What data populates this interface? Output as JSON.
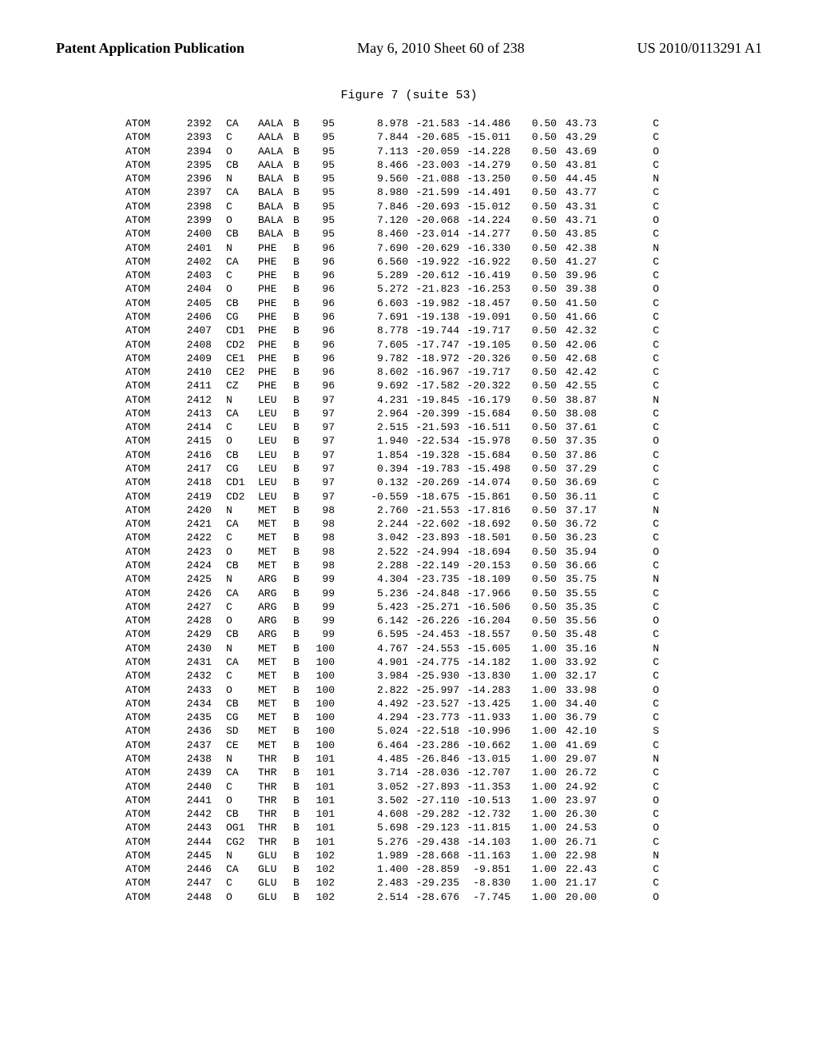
{
  "header": {
    "left": "Patent Application Publication",
    "middle": "May 6, 2010  Sheet 60 of 238",
    "right": "US 2010/0113291 A1"
  },
  "figure_caption": "Figure 7 (suite 53)",
  "atoms": [
    {
      "rec": "ATOM",
      "ser": 2392,
      "atm": "CA",
      "res": "AALA",
      "ch": "B",
      "seq": 95,
      "x": "8.978",
      "y": "-21.583",
      "z": "-14.486",
      "oc": "0.50",
      "bf": "43.73",
      "el": "C"
    },
    {
      "rec": "ATOM",
      "ser": 2393,
      "atm": "C",
      "res": "AALA",
      "ch": "B",
      "seq": 95,
      "x": "7.844",
      "y": "-20.685",
      "z": "-15.011",
      "oc": "0.50",
      "bf": "43.29",
      "el": "C"
    },
    {
      "rec": "ATOM",
      "ser": 2394,
      "atm": "O",
      "res": "AALA",
      "ch": "B",
      "seq": 95,
      "x": "7.113",
      "y": "-20.059",
      "z": "-14.228",
      "oc": "0.50",
      "bf": "43.69",
      "el": "O"
    },
    {
      "rec": "ATOM",
      "ser": 2395,
      "atm": "CB",
      "res": "AALA",
      "ch": "B",
      "seq": 95,
      "x": "8.466",
      "y": "-23.003",
      "z": "-14.279",
      "oc": "0.50",
      "bf": "43.81",
      "el": "C"
    },
    {
      "rec": "ATOM",
      "ser": 2396,
      "atm": "N",
      "res": "BALA",
      "ch": "B",
      "seq": 95,
      "x": "9.560",
      "y": "-21.088",
      "z": "-13.250",
      "oc": "0.50",
      "bf": "44.45",
      "el": "N"
    },
    {
      "rec": "ATOM",
      "ser": 2397,
      "atm": "CA",
      "res": "BALA",
      "ch": "B",
      "seq": 95,
      "x": "8.980",
      "y": "-21.599",
      "z": "-14.491",
      "oc": "0.50",
      "bf": "43.77",
      "el": "C"
    },
    {
      "rec": "ATOM",
      "ser": 2398,
      "atm": "C",
      "res": "BALA",
      "ch": "B",
      "seq": 95,
      "x": "7.846",
      "y": "-20.693",
      "z": "-15.012",
      "oc": "0.50",
      "bf": "43.31",
      "el": "C"
    },
    {
      "rec": "ATOM",
      "ser": 2399,
      "atm": "O",
      "res": "BALA",
      "ch": "B",
      "seq": 95,
      "x": "7.120",
      "y": "-20.068",
      "z": "-14.224",
      "oc": "0.50",
      "bf": "43.71",
      "el": "O"
    },
    {
      "rec": "ATOM",
      "ser": 2400,
      "atm": "CB",
      "res": "BALA",
      "ch": "B",
      "seq": 95,
      "x": "8.460",
      "y": "-23.014",
      "z": "-14.277",
      "oc": "0.50",
      "bf": "43.85",
      "el": "C"
    },
    {
      "rec": "ATOM",
      "ser": 2401,
      "atm": "N",
      "res": "PHE",
      "ch": "B",
      "seq": 96,
      "x": "7.690",
      "y": "-20.629",
      "z": "-16.330",
      "oc": "0.50",
      "bf": "42.38",
      "el": "N"
    },
    {
      "rec": "ATOM",
      "ser": 2402,
      "atm": "CA",
      "res": "PHE",
      "ch": "B",
      "seq": 96,
      "x": "6.560",
      "y": "-19.922",
      "z": "-16.922",
      "oc": "0.50",
      "bf": "41.27",
      "el": "C"
    },
    {
      "rec": "ATOM",
      "ser": 2403,
      "atm": "C",
      "res": "PHE",
      "ch": "B",
      "seq": 96,
      "x": "5.289",
      "y": "-20.612",
      "z": "-16.419",
      "oc": "0.50",
      "bf": "39.96",
      "el": "C"
    },
    {
      "rec": "ATOM",
      "ser": 2404,
      "atm": "O",
      "res": "PHE",
      "ch": "B",
      "seq": 96,
      "x": "5.272",
      "y": "-21.823",
      "z": "-16.253",
      "oc": "0.50",
      "bf": "39.38",
      "el": "O"
    },
    {
      "rec": "ATOM",
      "ser": 2405,
      "atm": "CB",
      "res": "PHE",
      "ch": "B",
      "seq": 96,
      "x": "6.603",
      "y": "-19.982",
      "z": "-18.457",
      "oc": "0.50",
      "bf": "41.50",
      "el": "C"
    },
    {
      "rec": "ATOM",
      "ser": 2406,
      "atm": "CG",
      "res": "PHE",
      "ch": "B",
      "seq": 96,
      "x": "7.691",
      "y": "-19.138",
      "z": "-19.091",
      "oc": "0.50",
      "bf": "41.66",
      "el": "C"
    },
    {
      "rec": "ATOM",
      "ser": 2407,
      "atm": "CD1",
      "res": "PHE",
      "ch": "B",
      "seq": 96,
      "x": "8.778",
      "y": "-19.744",
      "z": "-19.717",
      "oc": "0.50",
      "bf": "42.32",
      "el": "C"
    },
    {
      "rec": "ATOM",
      "ser": 2408,
      "atm": "CD2",
      "res": "PHE",
      "ch": "B",
      "seq": 96,
      "x": "7.605",
      "y": "-17.747",
      "z": "-19.105",
      "oc": "0.50",
      "bf": "42.06",
      "el": "C"
    },
    {
      "rec": "ATOM",
      "ser": 2409,
      "atm": "CE1",
      "res": "PHE",
      "ch": "B",
      "seq": 96,
      "x": "9.782",
      "y": "-18.972",
      "z": "-20.326",
      "oc": "0.50",
      "bf": "42.68",
      "el": "C"
    },
    {
      "rec": "ATOM",
      "ser": 2410,
      "atm": "CE2",
      "res": "PHE",
      "ch": "B",
      "seq": 96,
      "x": "8.602",
      "y": "-16.967",
      "z": "-19.717",
      "oc": "0.50",
      "bf": "42.42",
      "el": "C"
    },
    {
      "rec": "ATOM",
      "ser": 2411,
      "atm": "CZ",
      "res": "PHE",
      "ch": "B",
      "seq": 96,
      "x": "9.692",
      "y": "-17.582",
      "z": "-20.322",
      "oc": "0.50",
      "bf": "42.55",
      "el": "C"
    },
    {
      "rec": "ATOM",
      "ser": 2412,
      "atm": "N",
      "res": "LEU",
      "ch": "B",
      "seq": 97,
      "x": "4.231",
      "y": "-19.845",
      "z": "-16.179",
      "oc": "0.50",
      "bf": "38.87",
      "el": "N"
    },
    {
      "rec": "ATOM",
      "ser": 2413,
      "atm": "CA",
      "res": "LEU",
      "ch": "B",
      "seq": 97,
      "x": "2.964",
      "y": "-20.399",
      "z": "-15.684",
      "oc": "0.50",
      "bf": "38.08",
      "el": "C"
    },
    {
      "rec": "ATOM",
      "ser": 2414,
      "atm": "C",
      "res": "LEU",
      "ch": "B",
      "seq": 97,
      "x": "2.515",
      "y": "-21.593",
      "z": "-16.511",
      "oc": "0.50",
      "bf": "37.61",
      "el": "C"
    },
    {
      "rec": "ATOM",
      "ser": 2415,
      "atm": "O",
      "res": "LEU",
      "ch": "B",
      "seq": 97,
      "x": "1.940",
      "y": "-22.534",
      "z": "-15.978",
      "oc": "0.50",
      "bf": "37.35",
      "el": "O"
    },
    {
      "rec": "ATOM",
      "ser": 2416,
      "atm": "CB",
      "res": "LEU",
      "ch": "B",
      "seq": 97,
      "x": "1.854",
      "y": "-19.328",
      "z": "-15.684",
      "oc": "0.50",
      "bf": "37.86",
      "el": "C"
    },
    {
      "rec": "ATOM",
      "ser": 2417,
      "atm": "CG",
      "res": "LEU",
      "ch": "B",
      "seq": 97,
      "x": "0.394",
      "y": "-19.783",
      "z": "-15.498",
      "oc": "0.50",
      "bf": "37.29",
      "el": "C"
    },
    {
      "rec": "ATOM",
      "ser": 2418,
      "atm": "CD1",
      "res": "LEU",
      "ch": "B",
      "seq": 97,
      "x": "0.132",
      "y": "-20.269",
      "z": "-14.074",
      "oc": "0.50",
      "bf": "36.69",
      "el": "C"
    },
    {
      "rec": "ATOM",
      "ser": 2419,
      "atm": "CD2",
      "res": "LEU",
      "ch": "B",
      "seq": 97,
      "x": "-0.559",
      "y": "-18.675",
      "z": "-15.861",
      "oc": "0.50",
      "bf": "36.11",
      "el": "C"
    },
    {
      "rec": "ATOM",
      "ser": 2420,
      "atm": "N",
      "res": "MET",
      "ch": "B",
      "seq": 98,
      "x": "2.760",
      "y": "-21.553",
      "z": "-17.816",
      "oc": "0.50",
      "bf": "37.17",
      "el": "N"
    },
    {
      "rec": "ATOM",
      "ser": 2421,
      "atm": "CA",
      "res": "MET",
      "ch": "B",
      "seq": 98,
      "x": "2.244",
      "y": "-22.602",
      "z": "-18.692",
      "oc": "0.50",
      "bf": "36.72",
      "el": "C"
    },
    {
      "rec": "ATOM",
      "ser": 2422,
      "atm": "C",
      "res": "MET",
      "ch": "B",
      "seq": 98,
      "x": "3.042",
      "y": "-23.893",
      "z": "-18.501",
      "oc": "0.50",
      "bf": "36.23",
      "el": "C"
    },
    {
      "rec": "ATOM",
      "ser": 2423,
      "atm": "O",
      "res": "MET",
      "ch": "B",
      "seq": 98,
      "x": "2.522",
      "y": "-24.994",
      "z": "-18.694",
      "oc": "0.50",
      "bf": "35.94",
      "el": "O"
    },
    {
      "rec": "ATOM",
      "ser": 2424,
      "atm": "CB",
      "res": "MET",
      "ch": "B",
      "seq": 98,
      "x": "2.288",
      "y": "-22.149",
      "z": "-20.153",
      "oc": "0.50",
      "bf": "36.66",
      "el": "C"
    },
    {
      "rec": "ATOM",
      "ser": 2425,
      "atm": "N",
      "res": "ARG",
      "ch": "B",
      "seq": 99,
      "x": "4.304",
      "y": "-23.735",
      "z": "-18.109",
      "oc": "0.50",
      "bf": "35.75",
      "el": "N"
    },
    {
      "rec": "ATOM",
      "ser": 2426,
      "atm": "CA",
      "res": "ARG",
      "ch": "B",
      "seq": 99,
      "x": "5.236",
      "y": "-24.848",
      "z": "-17.966",
      "oc": "0.50",
      "bf": "35.55",
      "el": "C"
    },
    {
      "rec": "ATOM",
      "ser": 2427,
      "atm": "C",
      "res": "ARG",
      "ch": "B",
      "seq": 99,
      "x": "5.423",
      "y": "-25.271",
      "z": "-16.506",
      "oc": "0.50",
      "bf": "35.35",
      "el": "C"
    },
    {
      "rec": "ATOM",
      "ser": 2428,
      "atm": "O",
      "res": "ARG",
      "ch": "B",
      "seq": 99,
      "x": "6.142",
      "y": "-26.226",
      "z": "-16.204",
      "oc": "0.50",
      "bf": "35.56",
      "el": "O"
    },
    {
      "rec": "ATOM",
      "ser": 2429,
      "atm": "CB",
      "res": "ARG",
      "ch": "B",
      "seq": 99,
      "x": "6.595",
      "y": "-24.453",
      "z": "-18.557",
      "oc": "0.50",
      "bf": "35.48",
      "el": "C"
    },
    {
      "rec": "ATOM",
      "ser": 2430,
      "atm": "N",
      "res": "MET",
      "ch": "B",
      "seq": 100,
      "x": "4.767",
      "y": "-24.553",
      "z": "-15.605",
      "oc": "1.00",
      "bf": "35.16",
      "el": "N"
    },
    {
      "rec": "ATOM",
      "ser": 2431,
      "atm": "CA",
      "res": "MET",
      "ch": "B",
      "seq": 100,
      "x": "4.901",
      "y": "-24.775",
      "z": "-14.182",
      "oc": "1.00",
      "bf": "33.92",
      "el": "C"
    },
    {
      "rec": "ATOM",
      "ser": 2432,
      "atm": "C",
      "res": "MET",
      "ch": "B",
      "seq": 100,
      "x": "3.984",
      "y": "-25.930",
      "z": "-13.830",
      "oc": "1.00",
      "bf": "32.17",
      "el": "C"
    },
    {
      "rec": "ATOM",
      "ser": 2433,
      "atm": "O",
      "res": "MET",
      "ch": "B",
      "seq": 100,
      "x": "2.822",
      "y": "-25.997",
      "z": "-14.283",
      "oc": "1.00",
      "bf": "33.98",
      "el": "O"
    },
    {
      "rec": "ATOM",
      "ser": 2434,
      "atm": "CB",
      "res": "MET",
      "ch": "B",
      "seq": 100,
      "x": "4.492",
      "y": "-23.527",
      "z": "-13.425",
      "oc": "1.00",
      "bf": "34.40",
      "el": "C"
    },
    {
      "rec": "ATOM",
      "ser": 2435,
      "atm": "CG",
      "res": "MET",
      "ch": "B",
      "seq": 100,
      "x": "4.294",
      "y": "-23.773",
      "z": "-11.933",
      "oc": "1.00",
      "bf": "36.79",
      "el": "C"
    },
    {
      "rec": "ATOM",
      "ser": 2436,
      "atm": "SD",
      "res": "MET",
      "ch": "B",
      "seq": 100,
      "x": "5.024",
      "y": "-22.518",
      "z": "-10.996",
      "oc": "1.00",
      "bf": "42.10",
      "el": "S"
    },
    {
      "rec": "ATOM",
      "ser": 2437,
      "atm": "CE",
      "res": "MET",
      "ch": "B",
      "seq": 100,
      "x": "6.464",
      "y": "-23.286",
      "z": "-10.662",
      "oc": "1.00",
      "bf": "41.69",
      "el": "C"
    },
    {
      "rec": "ATOM",
      "ser": 2438,
      "atm": "N",
      "res": "THR",
      "ch": "B",
      "seq": 101,
      "x": "4.485",
      "y": "-26.846",
      "z": "-13.015",
      "oc": "1.00",
      "bf": "29.07",
      "el": "N"
    },
    {
      "rec": "ATOM",
      "ser": 2439,
      "atm": "CA",
      "res": "THR",
      "ch": "B",
      "seq": 101,
      "x": "3.714",
      "y": "-28.036",
      "z": "-12.707",
      "oc": "1.00",
      "bf": "26.72",
      "el": "C"
    },
    {
      "rec": "ATOM",
      "ser": 2440,
      "atm": "C",
      "res": "THR",
      "ch": "B",
      "seq": 101,
      "x": "3.052",
      "y": "-27.893",
      "z": "-11.353",
      "oc": "1.00",
      "bf": "24.92",
      "el": "C"
    },
    {
      "rec": "ATOM",
      "ser": 2441,
      "atm": "O",
      "res": "THR",
      "ch": "B",
      "seq": 101,
      "x": "3.502",
      "y": "-27.110",
      "z": "-10.513",
      "oc": "1.00",
      "bf": "23.97",
      "el": "O"
    },
    {
      "rec": "ATOM",
      "ser": 2442,
      "atm": "CB",
      "res": "THR",
      "ch": "B",
      "seq": 101,
      "x": "4.608",
      "y": "-29.282",
      "z": "-12.732",
      "oc": "1.00",
      "bf": "26.30",
      "el": "C"
    },
    {
      "rec": "ATOM",
      "ser": 2443,
      "atm": "OG1",
      "res": "THR",
      "ch": "B",
      "seq": 101,
      "x": "5.698",
      "y": "-29.123",
      "z": "-11.815",
      "oc": "1.00",
      "bf": "24.53",
      "el": "O"
    },
    {
      "rec": "ATOM",
      "ser": 2444,
      "atm": "CG2",
      "res": "THR",
      "ch": "B",
      "seq": 101,
      "x": "5.276",
      "y": "-29.438",
      "z": "-14.103",
      "oc": "1.00",
      "bf": "26.71",
      "el": "C"
    },
    {
      "rec": "ATOM",
      "ser": 2445,
      "atm": "N",
      "res": "GLU",
      "ch": "B",
      "seq": 102,
      "x": "1.989",
      "y": "-28.668",
      "z": "-11.163",
      "oc": "1.00",
      "bf": "22.98",
      "el": "N"
    },
    {
      "rec": "ATOM",
      "ser": 2446,
      "atm": "CA",
      "res": "GLU",
      "ch": "B",
      "seq": 102,
      "x": "1.400",
      "y": "-28.859",
      "z": "-9.851",
      "oc": "1.00",
      "bf": "22.43",
      "el": "C"
    },
    {
      "rec": "ATOM",
      "ser": 2447,
      "atm": "C",
      "res": "GLU",
      "ch": "B",
      "seq": 102,
      "x": "2.483",
      "y": "-29.235",
      "z": "-8.830",
      "oc": "1.00",
      "bf": "21.17",
      "el": "C"
    },
    {
      "rec": "ATOM",
      "ser": 2448,
      "atm": "O",
      "res": "GLU",
      "ch": "B",
      "seq": 102,
      "x": "2.514",
      "y": "-28.676",
      "z": "-7.745",
      "oc": "1.00",
      "bf": "20.00",
      "el": "O"
    }
  ]
}
